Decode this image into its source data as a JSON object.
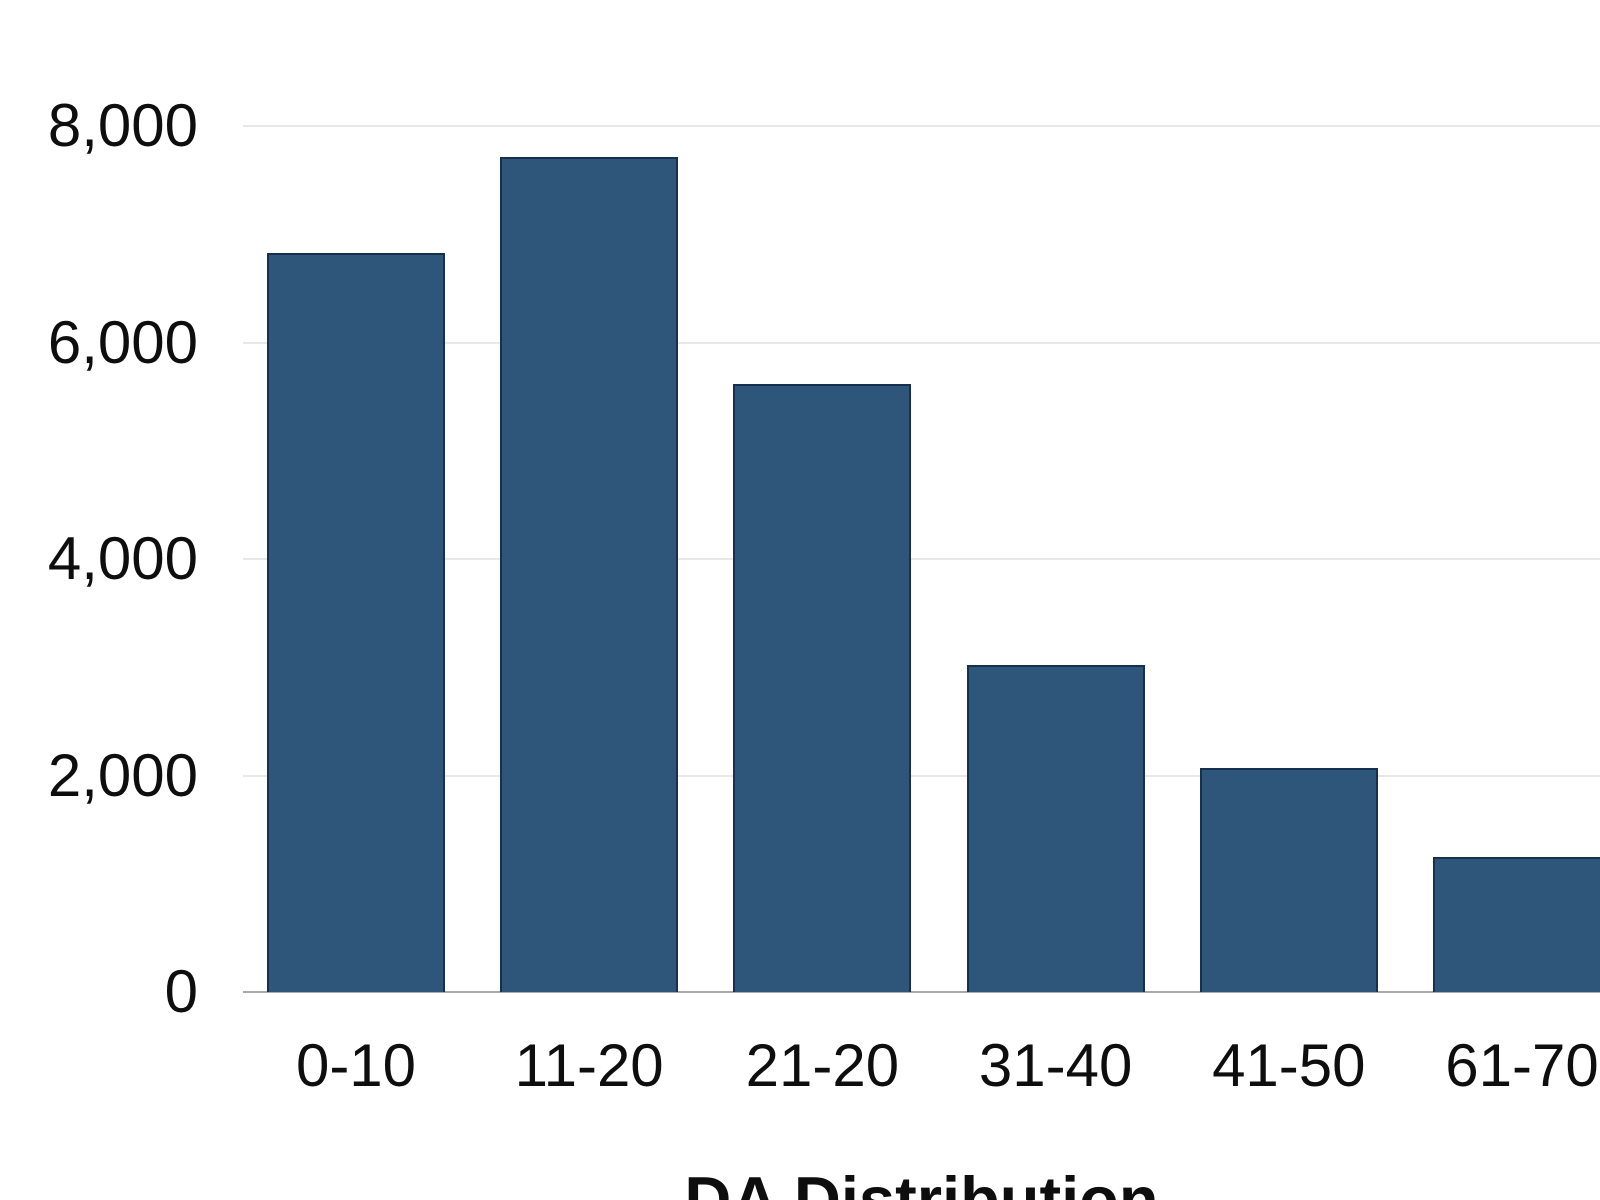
{
  "chart_data": {
    "type": "bar",
    "title": "DA Distribution",
    "title_position": "bottom-center",
    "categories": [
      "0-10",
      "11-20",
      "21-20",
      "31-40",
      "41-50",
      "61-70"
    ],
    "values": [
      6830,
      7710,
      5620,
      3020,
      2070,
      1250
    ],
    "xlabel": "",
    "ylabel": "",
    "ylim": [
      0,
      8000
    ],
    "y_ticks": [
      {
        "value": 0,
        "label": "0"
      },
      {
        "value": 2000,
        "label": "2,000"
      },
      {
        "value": 4000,
        "label": "4,000"
      },
      {
        "value": 6000,
        "label": "6,000"
      },
      {
        "value": 8000,
        "label": "8,000"
      }
    ],
    "grid": true,
    "legend": false,
    "colors": {
      "bar_fill": "#2e567b",
      "bar_border": "#16304d",
      "gridline": "#e8e8e8",
      "axis_line": "#a9a9a9",
      "text": "#0e0e0e",
      "background": "#ffffff"
    }
  }
}
